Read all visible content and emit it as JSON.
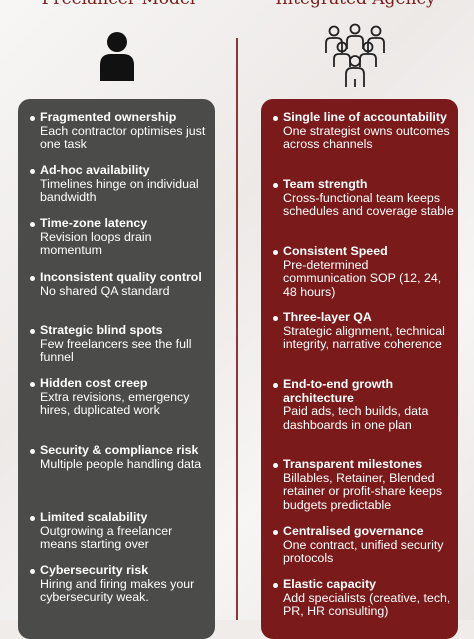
{
  "columns": {
    "left_title": "Freelancer Model",
    "right_title": "Integrated Agency"
  },
  "icons": {
    "left": "person-icon",
    "right": "team-icon"
  },
  "colors": {
    "left_panel": "#4b4b4a",
    "right_panel": "#7b1a1a",
    "title": "#7a1c1c"
  },
  "freelancer_items": [
    {
      "title": "Fragmented ownership",
      "desc": "Each contractor optimises just one task"
    },
    {
      "title": "Ad-hoc availability",
      "desc": "Timelines hinge on individual bandwidth"
    },
    {
      "title": "Time-zone latency",
      "desc": "Revision loops drain momentum"
    },
    {
      "title": "Inconsistent quality control",
      "desc": "No shared QA standard"
    },
    {
      "title": "Strategic blind spots",
      "desc": "Few freelancers see the full funnel"
    },
    {
      "title": "Hidden cost creep",
      "desc": "Extra revisions, emergency hires, duplicated work"
    },
    {
      "title": "Security & compliance risk",
      "desc": "Multiple people handling data"
    },
    {
      "title": "Limited scalability",
      "desc": "Outgrowing a freelancer means starting over"
    },
    {
      "title": "Cybersecurity risk",
      "desc": "Hiring and firing makes your cybersecurity weak."
    }
  ],
  "agency_items": [
    {
      "title": "Single line of accountability",
      "desc": "One strategist owns outcomes across channels"
    },
    {
      "title": "Team strength",
      "desc": "Cross-functional team keeps schedules and coverage stable"
    },
    {
      "title": "Consistent Speed",
      "desc": "Pre-determined communication SOP (12, 24, 48 hours)"
    },
    {
      "title": "Three-layer QA",
      "desc": "Strategic alignment, technical integrity, narrative coherence"
    },
    {
      "title": "End-to-end growth architecture",
      "desc": "Paid ads, tech builds, data dashboards in one plan"
    },
    {
      "title": "Transparent milestones",
      "desc": "Billables, Retainer, Blended retainer or profit-share keeps budgets predictable"
    },
    {
      "title": "Centralised governance",
      "desc": "One contract, unified security protocols"
    },
    {
      "title": "Elastic capacity",
      "desc": "Add specialists (creative, tech, PR, HR consulting)"
    }
  ]
}
